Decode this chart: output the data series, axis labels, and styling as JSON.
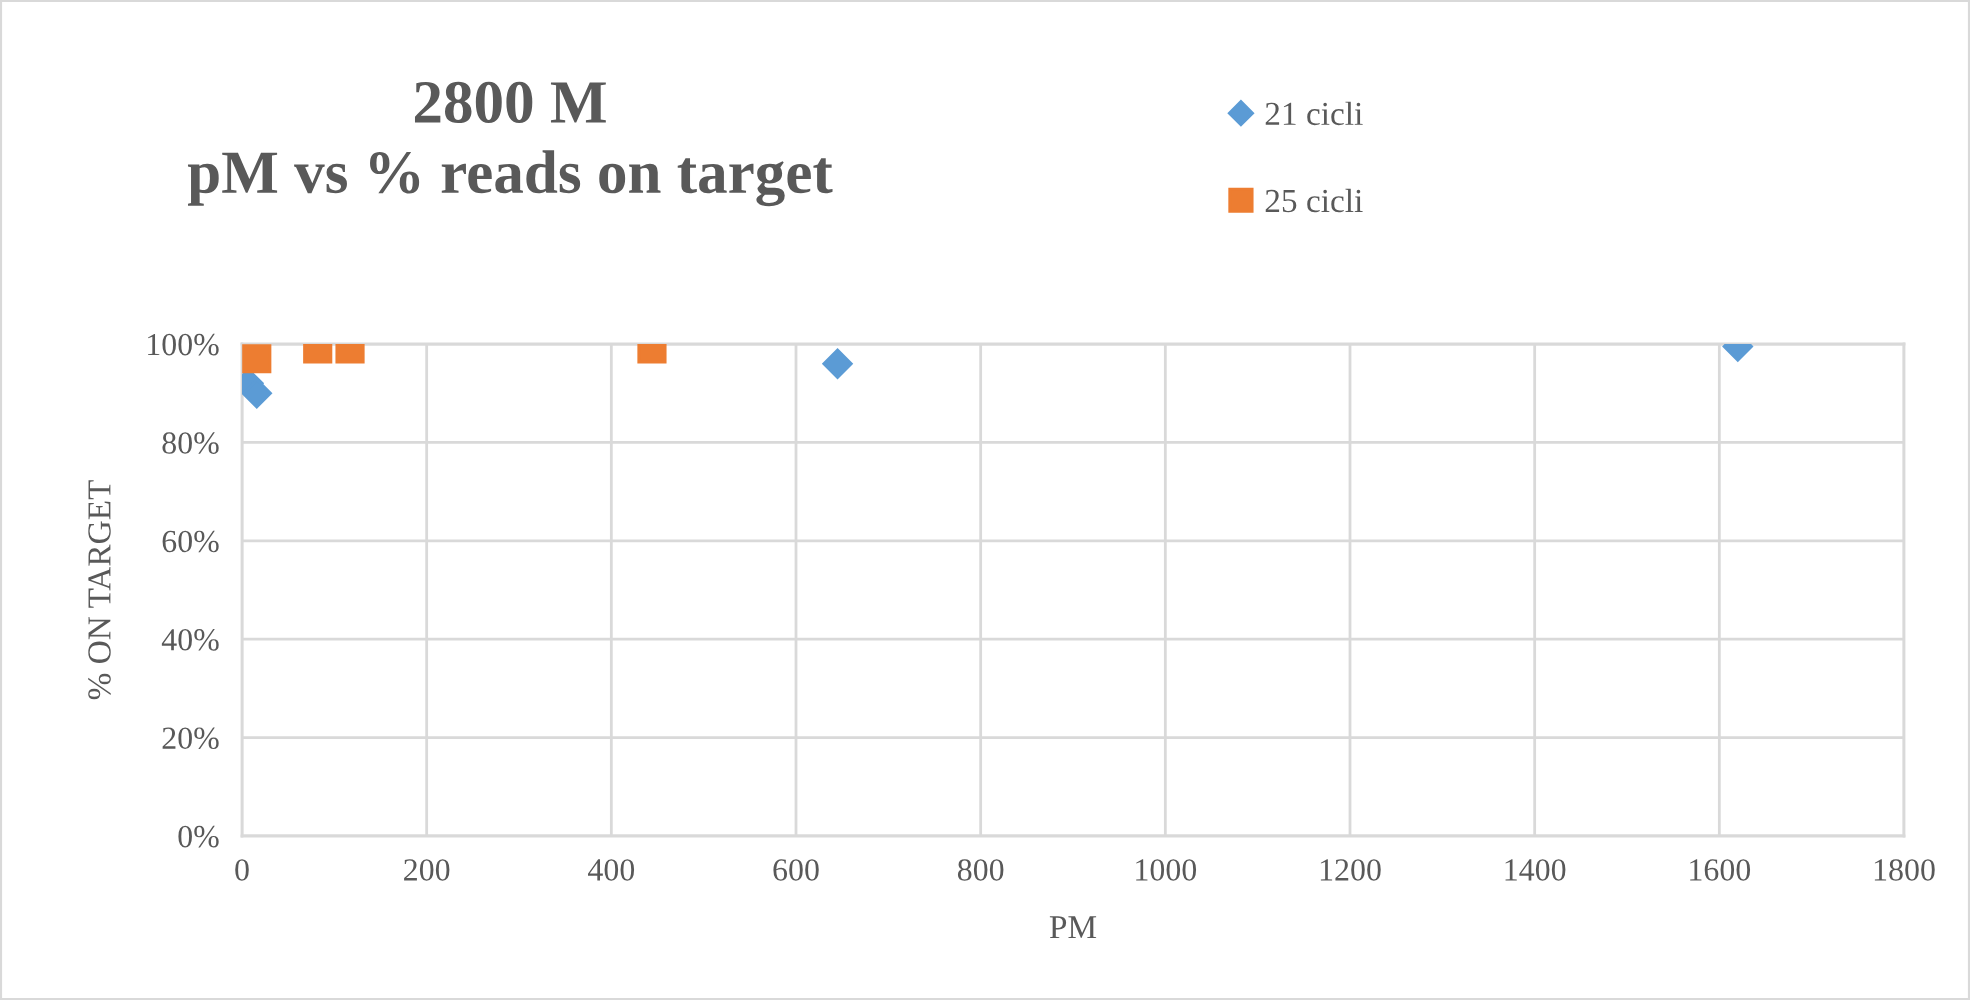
{
  "chart_data": {
    "type": "scatter",
    "title": "2800 M\npM vs % reads on target",
    "xlabel": "PM",
    "ylabel": "% ON TARGET",
    "xlim": [
      0,
      1800
    ],
    "xticks": [
      0,
      200,
      400,
      600,
      800,
      1000,
      1200,
      1400,
      1600,
      1800
    ],
    "ylim": [
      0,
      100
    ],
    "yticks": [
      {
        "value": 0,
        "label": "0%"
      },
      {
        "value": 20,
        "label": "20%"
      },
      {
        "value": 40,
        "label": "40%"
      },
      {
        "value": 60,
        "label": "60%"
      },
      {
        "value": 80,
        "label": "80%"
      },
      {
        "value": 100,
        "label": "100%"
      }
    ],
    "grid": true,
    "legend": "top right",
    "series": [
      {
        "name": "21 cicli",
        "color": "#5b9bd5",
        "marker": "diamond",
        "x": [
          7,
          16,
          645,
          1620
        ],
        "values": [
          92,
          90,
          96,
          99.5
        ]
      },
      {
        "name": "25 cicli",
        "color": "#ed7d31",
        "marker": "square",
        "x": [
          16,
          82,
          117,
          444
        ],
        "values": [
          97,
          99,
          99,
          99
        ]
      }
    ]
  }
}
